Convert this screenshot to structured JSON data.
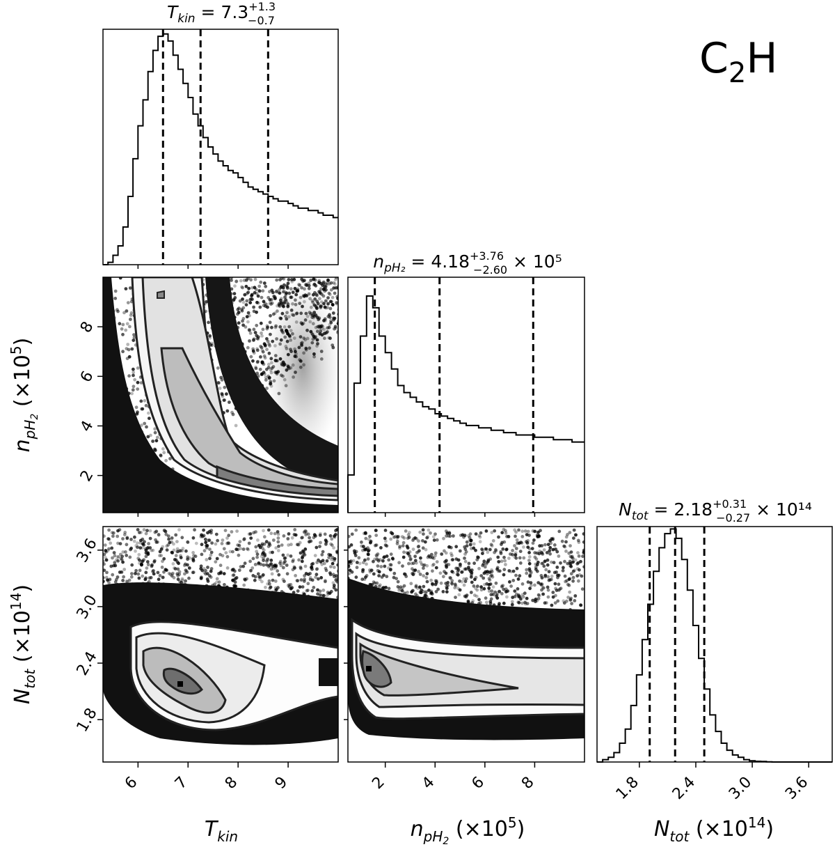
{
  "figure": {
    "label_main": "C",
    "label_sub": "2",
    "label_tail": "H"
  },
  "chart_data": {
    "type": "corner",
    "parameters": [
      {
        "key": "Tkin",
        "axis_label": "T_kin",
        "title": {
          "prefix": "T",
          "sub": "kin",
          "eq": " = 7.3",
          "sup": "+1.3",
          "low": "−0.7",
          "tail": ""
        },
        "median": 7.3,
        "err_plus": 1.3,
        "err_minus": 0.7,
        "quantiles": [
          6.5,
          7.25,
          8.6
        ],
        "range": [
          5.3,
          10.0
        ],
        "ticks": [
          6,
          7,
          8,
          9
        ],
        "tick_labels": [
          "6",
          "7",
          "8",
          "9"
        ],
        "histogram": {
          "x0": 5.3,
          "dx": 0.1,
          "heights": [
            0.0,
            0.01,
            0.04,
            0.08,
            0.16,
            0.29,
            0.45,
            0.59,
            0.7,
            0.82,
            0.91,
            0.97,
            0.98,
            0.95,
            0.89,
            0.83,
            0.77,
            0.71,
            0.64,
            0.59,
            0.54,
            0.5,
            0.47,
            0.44,
            0.42,
            0.4,
            0.39,
            0.37,
            0.35,
            0.33,
            0.32,
            0.31,
            0.3,
            0.29,
            0.28,
            0.27,
            0.27,
            0.26,
            0.25,
            0.24,
            0.24,
            0.23,
            0.23,
            0.22,
            0.21,
            0.21,
            0.2
          ]
        }
      },
      {
        "key": "npH2",
        "axis_label": "n_pH2 (×10^5)",
        "title": {
          "prefix": "n",
          "sub": "pH₂",
          "eq": " = 4.18",
          "sup": "+3.76",
          "low": "−2.60",
          "tail": " × 10⁵"
        },
        "median": 4.18,
        "err_plus": 3.76,
        "err_minus": 2.6,
        "quantiles": [
          1.58,
          4.18,
          7.94
        ],
        "range": [
          0.5,
          10.0
        ],
        "ticks": [
          2,
          4,
          6,
          8
        ],
        "tick_labels": [
          "2",
          "4",
          "6",
          "8"
        ],
        "histogram": {
          "x0": 0.5,
          "dx": 0.25,
          "heights": [
            0.16,
            0.55,
            0.75,
            0.92,
            0.87,
            0.75,
            0.68,
            0.61,
            0.54,
            0.51,
            0.49,
            0.47,
            0.45,
            0.44,
            0.42,
            0.41,
            0.4,
            0.39,
            0.38,
            0.37,
            0.37,
            0.36,
            0.36,
            0.35,
            0.35,
            0.34,
            0.34,
            0.33,
            0.33,
            0.33,
            0.32,
            0.32,
            0.32,
            0.31,
            0.31,
            0.31,
            0.3,
            0.3
          ]
        }
      },
      {
        "key": "Ntot",
        "axis_label": "N_tot (×10^14)",
        "title": {
          "prefix": "N",
          "sub": "tot",
          "eq": " = 2.18",
          "sup": "+0.31",
          "low": "−0.27",
          "tail": " × 10¹⁴"
        },
        "median": 2.18,
        "err_plus": 0.31,
        "err_minus": 0.27,
        "quantiles": [
          1.91,
          2.18,
          2.49
        ],
        "range": [
          1.35,
          3.85
        ],
        "ticks": [
          1.8,
          2.4,
          3.0,
          3.6
        ],
        "tick_labels": [
          "1.8",
          "2.4",
          "3.0",
          "3.6"
        ],
        "histogram": {
          "x0": 1.35,
          "dx": 0.06,
          "heights": [
            0.0,
            0.01,
            0.02,
            0.04,
            0.08,
            0.14,
            0.24,
            0.37,
            0.52,
            0.67,
            0.81,
            0.91,
            0.97,
            0.99,
            0.95,
            0.86,
            0.73,
            0.58,
            0.44,
            0.31,
            0.2,
            0.13,
            0.08,
            0.05,
            0.03,
            0.02,
            0.01,
            0.005,
            0.003,
            0.002,
            0.001,
            0.0,
            0.0,
            0.0,
            0.0,
            0.0,
            0.0,
            0.0,
            0.0,
            0.0,
            0.0,
            0.0
          ]
        }
      }
    ],
    "pair_panels": [
      {
        "x": "Tkin",
        "y": "npH2",
        "description": "curved banana-shaped 2D density with contours"
      },
      {
        "x": "Tkin",
        "y": "Ntot",
        "description": "elongated elliptical 2D density with contours"
      },
      {
        "x": "npH2",
        "y": "Ntot",
        "description": "horizontal band 2D density with contours"
      }
    ],
    "grid": false
  }
}
